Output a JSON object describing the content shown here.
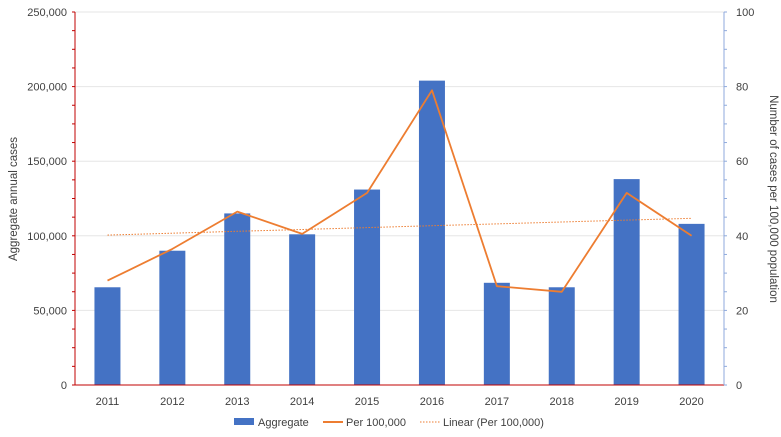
{
  "chart_data": {
    "type": "bar",
    "categories": [
      "2011",
      "2012",
      "2013",
      "2014",
      "2015",
      "2016",
      "2017",
      "2018",
      "2019",
      "2020"
    ],
    "series": [
      {
        "name": "Aggregate",
        "type": "bar",
        "axis": "left",
        "color": "#4472C4",
        "values": [
          65500,
          90000,
          115000,
          101000,
          131000,
          204000,
          68500,
          65500,
          138000,
          108000
        ]
      },
      {
        "name": "Per 100,000",
        "type": "line",
        "axis": "right",
        "color": "#ED7D31",
        "values": [
          28,
          36.5,
          46.5,
          40.5,
          51.5,
          79,
          26.5,
          25,
          51.5,
          40
        ]
      },
      {
        "name": "Linear (Per 100,000)",
        "type": "line",
        "style": "dotted",
        "axis": "right",
        "color": "#ED7D31",
        "values": [
          40.2,
          40.7,
          41.2,
          41.7,
          42.2,
          42.7,
          43.2,
          43.7,
          44.2,
          44.7
        ]
      }
    ],
    "ylabel": "Aggregate annual cases",
    "y2label": "Number of cases per 100,000 population",
    "ylim": [
      0,
      250000
    ],
    "y2lim": [
      0,
      100
    ],
    "yticks": [
      "0",
      "50,000",
      "100,000",
      "150,000",
      "200,000",
      "250,000"
    ],
    "y2ticks": [
      "0",
      "20",
      "40",
      "60",
      "80",
      "100"
    ],
    "grid": true,
    "legend_position": "bottom",
    "colors": {
      "left_axis": "#C00000",
      "right_axis": "#8FAADC",
      "grid": "#E6E6E6"
    }
  }
}
